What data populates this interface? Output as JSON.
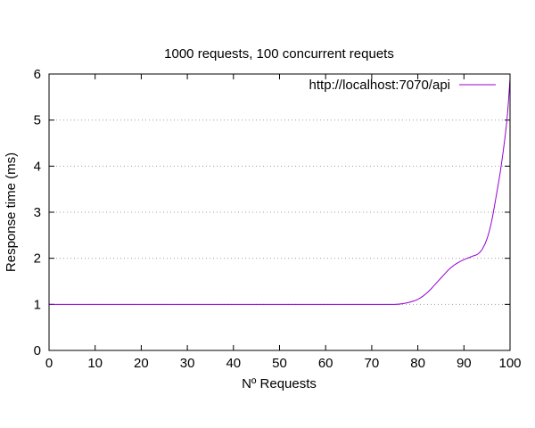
{
  "chart_data": {
    "type": "line",
    "title": "1000 requests, 100 concurrent requets",
    "xlabel": "Nº Requests",
    "ylabel": "Response time (ms)",
    "xlim": [
      0,
      100
    ],
    "ylim": [
      0,
      6
    ],
    "x_ticks": [
      0,
      10,
      20,
      30,
      40,
      50,
      60,
      70,
      80,
      90,
      100
    ],
    "y_ticks": [
      0,
      1,
      2,
      3,
      4,
      5,
      6
    ],
    "grid": "horizontal dotted",
    "legend_position": "top-right",
    "colors": {
      "series": "#9400d3",
      "grid": "#a0a0a0",
      "axes": "#000000"
    },
    "series": [
      {
        "name": "http://localhost:7070/api",
        "x": [
          0,
          10,
          20,
          30,
          40,
          50,
          60,
          70,
          75,
          77,
          79,
          80,
          81,
          82,
          83,
          84,
          85,
          86,
          87,
          88,
          89,
          90,
          91,
          92,
          93,
          94,
          95,
          96,
          97,
          98,
          99,
          99.5,
          100
        ],
        "y": [
          1,
          1,
          1,
          1,
          1,
          1,
          1,
          1,
          1,
          1.02,
          1.07,
          1.11,
          1.17,
          1.25,
          1.35,
          1.46,
          1.57,
          1.68,
          1.78,
          1.86,
          1.92,
          1.97,
          2.01,
          2.05,
          2.09,
          2.2,
          2.42,
          2.8,
          3.35,
          3.95,
          4.7,
          5.2,
          5.9
        ]
      }
    ]
  }
}
